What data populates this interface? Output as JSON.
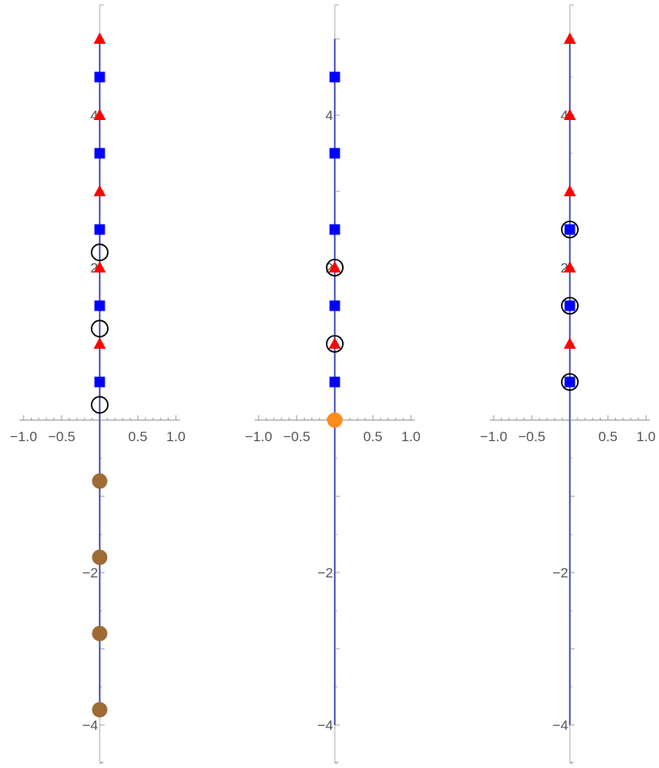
{
  "chart_data": [
    {
      "type": "scatter",
      "title": "",
      "xlabel": "",
      "ylabel": "",
      "xlim": [
        -1.05,
        1.05
      ],
      "ylim": [
        -4.5,
        5.4
      ],
      "x_ticks": [
        -1.0,
        -0.5,
        0.5,
        1.0
      ],
      "x_tick_labels": [
        "−1.0",
        "−0.5",
        "0.5",
        "1.0"
      ],
      "y_ticks": [
        -4,
        -2,
        2,
        4
      ],
      "y_tick_labels": [
        "−4",
        "−2",
        "2",
        "4"
      ],
      "line": {
        "x": 0,
        "y_from": -3.8,
        "y_to": 5.0,
        "color": "#5a5fbf"
      },
      "grid": false,
      "series": [
        {
          "marker": "triangle",
          "color": "#ff0000",
          "points": [
            [
              0,
              1.0
            ],
            [
              0,
              2.0
            ],
            [
              0,
              3.0
            ],
            [
              0,
              4.0
            ],
            [
              0,
              5.0
            ]
          ]
        },
        {
          "marker": "square",
          "color": "#0000ff",
          "points": [
            [
              0,
              0.5
            ],
            [
              0,
              1.5
            ],
            [
              0,
              2.5
            ],
            [
              0,
              3.5
            ],
            [
              0,
              4.5
            ]
          ]
        },
        {
          "marker": "open-circle",
          "color": "#000000",
          "points": [
            [
              0,
              0.2
            ],
            [
              0,
              1.2
            ],
            [
              0,
              2.2
            ]
          ]
        },
        {
          "marker": "filled-circle",
          "color": "#9e6b35",
          "points": [
            [
              0,
              -0.8
            ],
            [
              0,
              -1.8
            ],
            [
              0,
              -2.8
            ],
            [
              0,
              -3.8
            ]
          ]
        }
      ]
    },
    {
      "type": "scatter",
      "title": "",
      "xlabel": "",
      "ylabel": "",
      "xlim": [
        -1.05,
        1.05
      ],
      "ylim": [
        -4.5,
        5.4
      ],
      "x_ticks": [
        -1.0,
        -0.5,
        0.5,
        1.0
      ],
      "x_tick_labels": [
        "−1.0",
        "−0.5",
        "0.5",
        "1.0"
      ],
      "y_ticks": [
        -4,
        -2,
        2,
        4
      ],
      "y_tick_labels": [
        "−4",
        "−2",
        "2",
        "4"
      ],
      "line": {
        "x": 0,
        "y_from": -4.0,
        "y_to": 5.0,
        "color": "#5a5fbf"
      },
      "grid": false,
      "series": [
        {
          "marker": "square",
          "color": "#0000ff",
          "points": [
            [
              0,
              0.5
            ],
            [
              0,
              1.5
            ],
            [
              0,
              2.5
            ],
            [
              0,
              3.5
            ],
            [
              0,
              4.5
            ]
          ]
        },
        {
          "marker": "triangle",
          "color": "#ff0000",
          "points": [
            [
              0,
              1.0
            ],
            [
              0,
              2.0
            ]
          ]
        },
        {
          "marker": "open-circle",
          "color": "#000000",
          "points": [
            [
              0,
              1.0
            ],
            [
              0,
              2.0
            ]
          ]
        },
        {
          "marker": "filled-circle",
          "color": "#ff8c1a",
          "points": [
            [
              0,
              0.0
            ]
          ]
        }
      ]
    },
    {
      "type": "scatter",
      "title": "",
      "xlabel": "",
      "ylabel": "",
      "xlim": [
        -1.05,
        1.05
      ],
      "ylim": [
        -4.5,
        5.4
      ],
      "x_ticks": [
        -1.0,
        -0.5,
        0.5,
        1.0
      ],
      "x_tick_labels": [
        "−1.0",
        "−0.5",
        "0.5",
        "1.0"
      ],
      "y_ticks": [
        -4,
        -2,
        2,
        4
      ],
      "y_tick_labels": [
        "−4",
        "−2",
        "2",
        "4"
      ],
      "line": {
        "x": 0,
        "y_from": -4.0,
        "y_to": 5.0,
        "color": "#5a5fbf"
      },
      "grid": false,
      "series": [
        {
          "marker": "triangle",
          "color": "#ff0000",
          "points": [
            [
              0,
              1.0
            ],
            [
              0,
              2.0
            ],
            [
              0,
              3.0
            ],
            [
              0,
              4.0
            ],
            [
              0,
              5.0
            ]
          ]
        },
        {
          "marker": "square",
          "color": "#0000ff",
          "points": [
            [
              0,
              0.5
            ],
            [
              0,
              1.5
            ],
            [
              0,
              2.5
            ]
          ]
        },
        {
          "marker": "open-circle",
          "color": "#000000",
          "points": [
            [
              0,
              0.5
            ],
            [
              0,
              1.5
            ],
            [
              0,
              2.5
            ]
          ]
        }
      ]
    }
  ]
}
